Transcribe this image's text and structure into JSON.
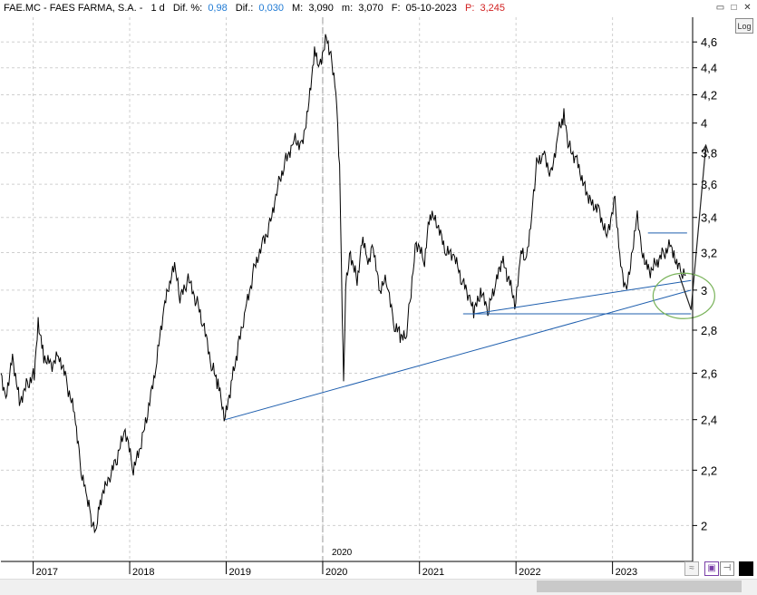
{
  "header": {
    "ticker": "FAE.MC - FAES FARMA, S.A. -",
    "period": "1 d",
    "dif_pct_label": "Dif. %:",
    "dif_pct_value": "0,98",
    "dif_label": "Dif.:",
    "dif_value": "0,030",
    "max_label": "M:",
    "max_value": "3,090",
    "min_label": "m:",
    "min_value": "3,070",
    "date_label": "F:",
    "date_value": "05-10-2023",
    "price_label": "P:",
    "price_value": "3,245",
    "colors": {
      "positive": "#1f7ad4",
      "price": "#d11f1f",
      "text": "#000000"
    }
  },
  "window_controls": {
    "minimize": "▭",
    "maximize": "□",
    "close": "✕"
  },
  "log_button": "Log",
  "year_marker": "2020",
  "chart_data": {
    "type": "line",
    "title": "",
    "xlabel": "",
    "ylabel": "",
    "y_scale": "log",
    "ylim": [
      1.88,
      4.8
    ],
    "xlim": [
      "2016-09-01",
      "2023-10-31"
    ],
    "x_tick_labels": [
      "2017",
      "2018",
      "2019",
      "2020",
      "2021",
      "2022",
      "2023"
    ],
    "y_tick_labels": [
      "2",
      "2,2",
      "2,4",
      "2,6",
      "2,8",
      "3",
      "3,2",
      "3,4",
      "3,6",
      "3,8",
      "4",
      "4,2",
      "4,4",
      "4,6"
    ],
    "y_tick_values": [
      2.0,
      2.2,
      2.4,
      2.6,
      2.8,
      3.0,
      3.2,
      3.4,
      3.6,
      3.8,
      4.0,
      4.2,
      4.4,
      4.6
    ],
    "grid": true,
    "series": [
      {
        "color": "#000000",
        "points": [
          [
            "2016-09-01",
            2.6
          ],
          [
            "2016-09-20",
            2.5
          ],
          [
            "2016-10-15",
            2.68
          ],
          [
            "2016-11-10",
            2.48
          ],
          [
            "2016-12-10",
            2.55
          ],
          [
            "2017-01-05",
            2.6
          ],
          [
            "2017-01-20",
            2.85
          ],
          [
            "2017-02-10",
            2.68
          ],
          [
            "2017-03-10",
            2.64
          ],
          [
            "2017-04-10",
            2.68
          ],
          [
            "2017-05-10",
            2.55
          ],
          [
            "2017-06-10",
            2.4
          ],
          [
            "2017-07-01",
            2.2
          ],
          [
            "2017-07-20",
            2.12
          ],
          [
            "2017-08-10",
            2.02
          ],
          [
            "2017-08-25",
            1.98
          ],
          [
            "2017-09-15",
            2.1
          ],
          [
            "2017-10-15",
            2.16
          ],
          [
            "2017-11-15",
            2.25
          ],
          [
            "2017-12-15",
            2.35
          ],
          [
            "2018-01-15",
            2.2
          ],
          [
            "2018-02-10",
            2.28
          ],
          [
            "2018-03-10",
            2.42
          ],
          [
            "2018-04-10",
            2.62
          ],
          [
            "2018-05-10",
            2.9
          ],
          [
            "2018-06-05",
            3.05
          ],
          [
            "2018-06-20",
            3.12
          ],
          [
            "2018-07-10",
            2.95
          ],
          [
            "2018-08-10",
            3.05
          ],
          [
            "2018-09-10",
            2.95
          ],
          [
            "2018-10-10",
            2.8
          ],
          [
            "2018-11-10",
            2.62
          ],
          [
            "2018-12-01",
            2.55
          ],
          [
            "2018-12-28",
            2.4
          ],
          [
            "2019-01-20",
            2.55
          ],
          [
            "2019-02-15",
            2.72
          ],
          [
            "2019-03-15",
            2.9
          ],
          [
            "2019-04-15",
            3.1
          ],
          [
            "2019-05-15",
            3.25
          ],
          [
            "2019-06-15",
            3.35
          ],
          [
            "2019-07-15",
            3.6
          ],
          [
            "2019-08-15",
            3.75
          ],
          [
            "2019-09-15",
            3.9
          ],
          [
            "2019-10-15",
            3.85
          ],
          [
            "2019-11-10",
            4.15
          ],
          [
            "2019-12-01",
            4.55
          ],
          [
            "2019-12-20",
            4.42
          ],
          [
            "2020-01-15",
            4.65
          ],
          [
            "2020-02-01",
            4.5
          ],
          [
            "2020-02-20",
            4.25
          ],
          [
            "2020-03-05",
            3.7
          ],
          [
            "2020-03-15",
            2.9
          ],
          [
            "2020-03-20",
            2.55
          ],
          [
            "2020-03-28",
            3.05
          ],
          [
            "2020-04-15",
            3.2
          ],
          [
            "2020-05-10",
            3.05
          ],
          [
            "2020-06-01",
            3.3
          ],
          [
            "2020-06-20",
            3.15
          ],
          [
            "2020-07-10",
            3.25
          ],
          [
            "2020-08-01",
            3.0
          ],
          [
            "2020-09-01",
            3.05
          ],
          [
            "2020-09-25",
            2.82
          ],
          [
            "2020-10-20",
            2.78
          ],
          [
            "2020-11-10",
            2.75
          ],
          [
            "2020-11-30",
            3.0
          ],
          [
            "2020-12-20",
            3.25
          ],
          [
            "2021-01-20",
            3.15
          ],
          [
            "2021-02-10",
            3.42
          ],
          [
            "2021-03-10",
            3.35
          ],
          [
            "2021-04-10",
            3.2
          ],
          [
            "2021-05-10",
            3.18
          ],
          [
            "2021-06-10",
            3.05
          ],
          [
            "2021-07-10",
            2.95
          ],
          [
            "2021-07-25",
            2.88
          ],
          [
            "2021-08-20",
            2.98
          ],
          [
            "2021-09-20",
            2.9
          ],
          [
            "2021-10-20",
            3.05
          ],
          [
            "2021-11-10",
            3.15
          ],
          [
            "2021-12-05",
            3.05
          ],
          [
            "2021-12-31",
            2.92
          ],
          [
            "2022-01-20",
            3.2
          ],
          [
            "2022-02-10",
            3.15
          ],
          [
            "2022-03-01",
            3.4
          ],
          [
            "2022-03-20",
            3.72
          ],
          [
            "2022-04-15",
            3.8
          ],
          [
            "2022-05-15",
            3.65
          ],
          [
            "2022-06-10",
            3.95
          ],
          [
            "2022-07-01",
            4.05
          ],
          [
            "2022-07-20",
            3.85
          ],
          [
            "2022-08-20",
            3.75
          ],
          [
            "2022-09-15",
            3.6
          ],
          [
            "2022-10-10",
            3.5
          ],
          [
            "2022-11-10",
            3.45
          ],
          [
            "2022-12-10",
            3.3
          ],
          [
            "2023-01-10",
            3.5
          ],
          [
            "2023-02-01",
            3.15
          ],
          [
            "2023-02-20",
            3.0
          ],
          [
            "2023-03-10",
            3.15
          ],
          [
            "2023-04-05",
            3.42
          ],
          [
            "2023-04-25",
            3.2
          ],
          [
            "2023-05-20",
            3.1
          ],
          [
            "2023-06-15",
            3.15
          ],
          [
            "2023-07-15",
            3.2
          ],
          [
            "2023-08-10",
            3.25
          ],
          [
            "2023-08-25",
            3.18
          ],
          [
            "2023-09-15",
            3.1
          ],
          [
            "2023-10-05",
            3.08
          ]
        ]
      }
    ],
    "annotations": {
      "trendlines": [
        {
          "color": "#1f5fae",
          "from": [
            "2018-12-28",
            2.4
          ],
          "to": [
            "2023-10-25",
            3.0
          ]
        },
        {
          "color": "#1f5fae",
          "from": [
            "2021-07-25",
            2.88
          ],
          "to": [
            "2023-10-25",
            3.05
          ]
        },
        {
          "color": "#1f5fae",
          "from": [
            "2021-06-15",
            2.88
          ],
          "to": [
            "2023-10-25",
            2.88
          ]
        },
        {
          "color": "#1f5fae",
          "from": [
            "2023-05-15",
            3.31
          ],
          "to": [
            "2023-10-10",
            3.31
          ]
        }
      ],
      "projection_arrow": {
        "color": "#222222",
        "points": [
          [
            "2023-09-10",
            3.08
          ],
          [
            "2023-10-25",
            2.9
          ],
          [
            "2023-12-20",
            3.85
          ]
        ]
      },
      "ellipse": {
        "color": "#79b35a",
        "center": [
          "2023-09-28",
          2.97
        ],
        "label": ""
      }
    }
  }
}
